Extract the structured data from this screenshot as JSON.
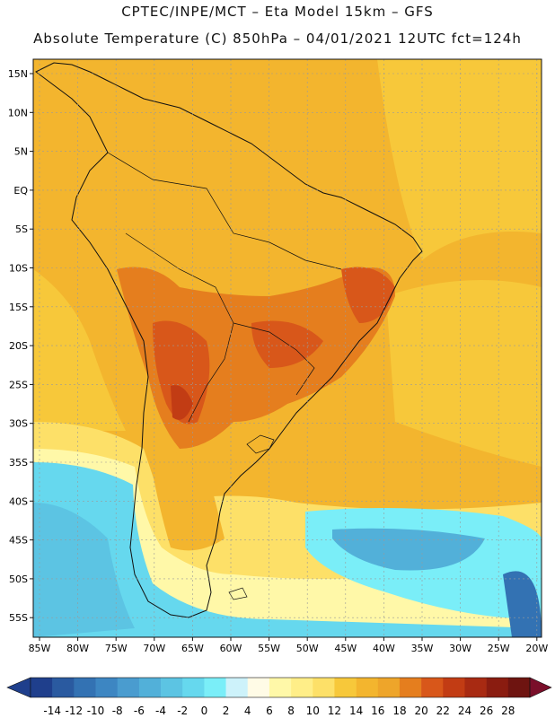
{
  "header": {
    "line1": "CPTEC/INPE/MCT –  Eta Model 15km – GFS",
    "line2": "Absolute Temperature (C) 850hPa – 04/01/2021 12UTC fct=124h"
  },
  "map": {
    "lat_labels": [
      "15N",
      "10N",
      "5N",
      "EQ",
      "5S",
      "10S",
      "15S",
      "20S",
      "25S",
      "30S",
      "35S",
      "40S",
      "45S",
      "50S",
      "55S"
    ],
    "lon_labels": [
      "85W",
      "80W",
      "75W",
      "70W",
      "65W",
      "60W",
      "55W",
      "50W",
      "45W",
      "40W",
      "35W",
      "30W",
      "25W",
      "20W"
    ]
  },
  "colorbar": {
    "labels": [
      "-14",
      "-12",
      "-10",
      "-8",
      "-6",
      "-4",
      "-2",
      "0",
      "2",
      "4",
      "6",
      "8",
      "10",
      "12",
      "14",
      "16",
      "18",
      "20",
      "22",
      "24",
      "26",
      "28"
    ],
    "colors": [
      "#1f3f8c",
      "#2a5aa0",
      "#3372b3",
      "#3d86c2",
      "#4a9ccf",
      "#52b0d9",
      "#5cc4e3",
      "#66d8ee",
      "#7aeef8",
      "#cdf2fa",
      "#fffbe6",
      "#fff8a8",
      "#ffee88",
      "#fde068",
      "#f7c83a",
      "#f3b52e",
      "#eea52a",
      "#e57e1e",
      "#d8571a",
      "#c23c14",
      "#a82a12",
      "#8a1c10",
      "#6e1410"
    ]
  }
}
